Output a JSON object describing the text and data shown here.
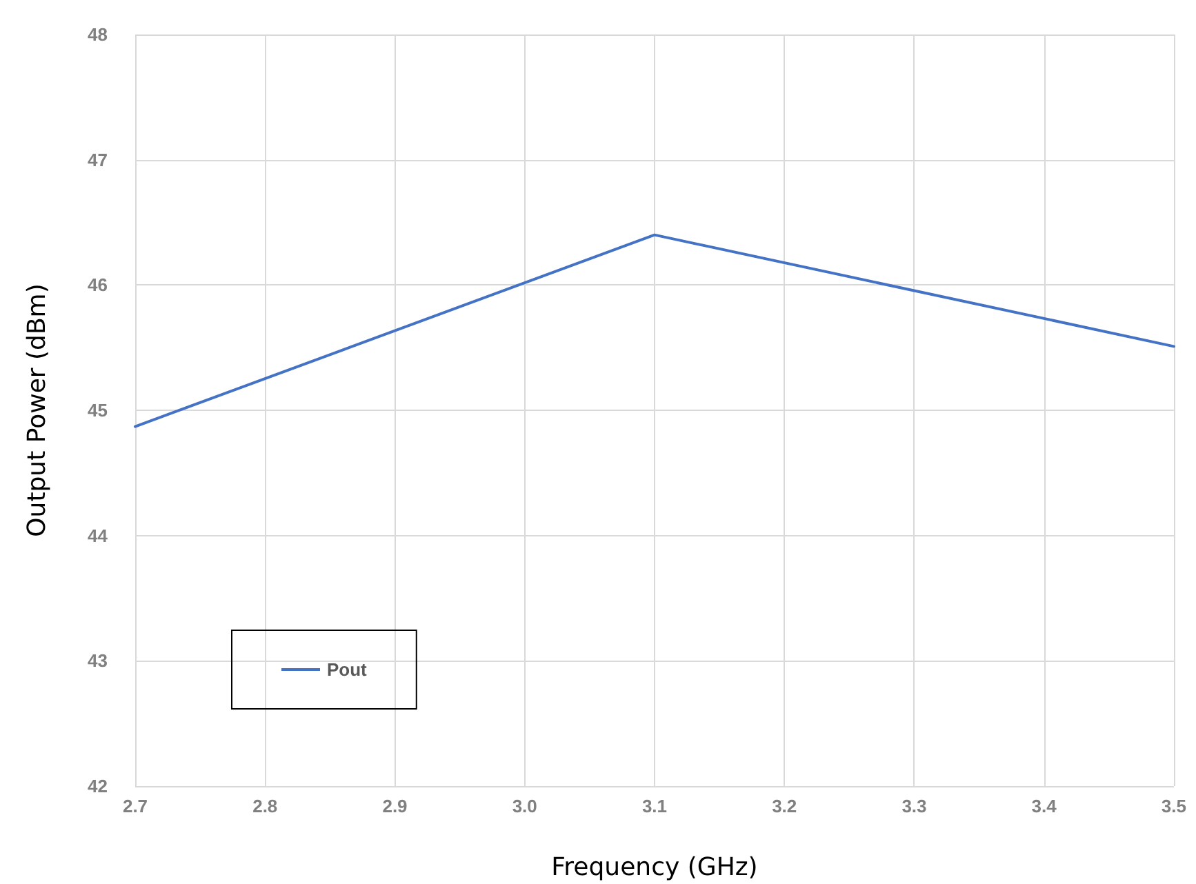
{
  "chart_data": {
    "type": "line",
    "xlabel": "Frequency (GHz)",
    "ylabel": "Output Power (dBm)",
    "x": [
      2.7,
      3.1,
      3.5
    ],
    "series": [
      {
        "name": "Pout",
        "color": "#4472c4",
        "values": [
          44.87,
          46.4,
          45.51
        ]
      }
    ],
    "xlim": [
      2.7,
      3.5
    ],
    "xticks": [
      2.7,
      2.8,
      2.9,
      {
        "value": 3.0,
        "label": "3.0"
      },
      3.1,
      3.2,
      3.3,
      3.4,
      3.5
    ],
    "ylim": [
      42,
      48
    ],
    "yticks": [
      42,
      43,
      44,
      45,
      46,
      47,
      48
    ],
    "grid": true,
    "legend": "bottom left",
    "marker": "none",
    "line_style": "solid"
  }
}
